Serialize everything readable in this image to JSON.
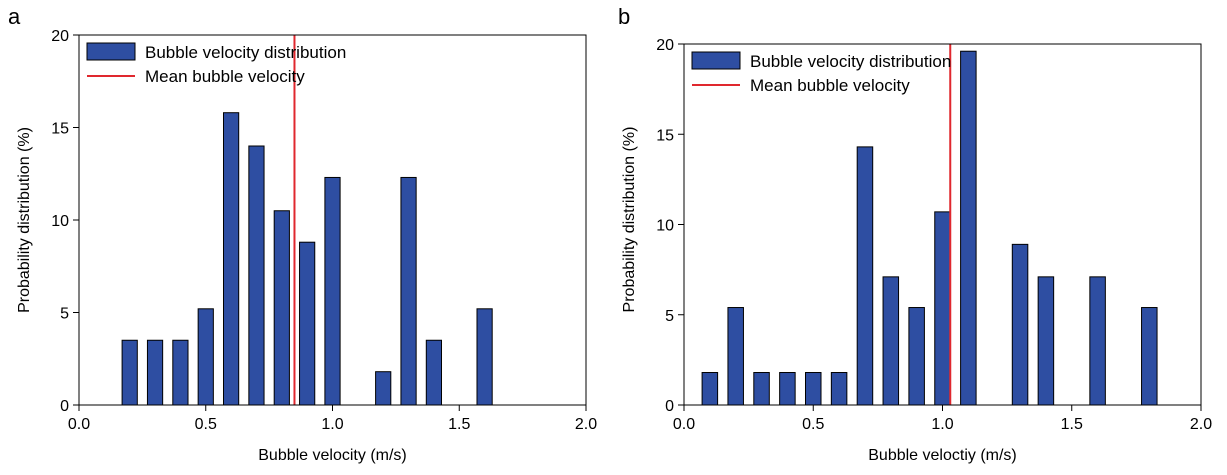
{
  "colors": {
    "bar_fill": "#2e4ea2",
    "bar_stroke": "#000000",
    "mean_line": "#e0282e"
  },
  "chart_data": [
    {
      "type": "bar",
      "panel_label": "a",
      "title": "",
      "xlabel": "Bubble velocity (m/s)",
      "ylabel": "Probability distribution (%)",
      "xlim": [
        0,
        2.0
      ],
      "ylim": [
        0,
        20
      ],
      "xticks": [
        0.0,
        0.5,
        1.0,
        1.5,
        2.0
      ],
      "xtick_labels": [
        "0.0",
        "0.5",
        "1.0",
        "1.5",
        "2.0"
      ],
      "yticks": [
        0,
        5,
        10,
        15,
        20
      ],
      "ytick_labels": [
        "0",
        "5",
        "10",
        "15",
        "20"
      ],
      "x": [
        0.2,
        0.3,
        0.4,
        0.5,
        0.6,
        0.7,
        0.8,
        0.9,
        1.0,
        1.2,
        1.3,
        1.4,
        1.6
      ],
      "values": [
        3.5,
        3.5,
        3.5,
        5.2,
        15.8,
        14.0,
        10.5,
        8.8,
        12.3,
        1.8,
        12.3,
        3.5,
        5.2
      ],
      "bar_width": 0.06,
      "mean_x": 0.85,
      "legend": {
        "placement": "top-left",
        "entries": [
          {
            "label": "Bubble velocity distribution",
            "kind": "bar"
          },
          {
            "label": "Mean bubble velocity",
            "kind": "line"
          }
        ]
      }
    },
    {
      "type": "bar",
      "panel_label": "b",
      "title": "",
      "xlabel": "Bubble veloctiy (m/s)",
      "ylabel": "Probability distribution (%)",
      "xlim": [
        0,
        2.0
      ],
      "ylim": [
        0,
        20
      ],
      "xticks": [
        0.0,
        0.5,
        1.0,
        1.5,
        2.0
      ],
      "xtick_labels": [
        "0.0",
        "0.5",
        "1.0",
        "1.5",
        "2.0"
      ],
      "yticks": [
        0,
        5,
        10,
        15,
        20
      ],
      "ytick_labels": [
        "0",
        "5",
        "10",
        "15",
        "20"
      ],
      "x": [
        0.1,
        0.2,
        0.3,
        0.4,
        0.5,
        0.6,
        0.7,
        0.8,
        0.9,
        1.0,
        1.1,
        1.3,
        1.4,
        1.6,
        1.8
      ],
      "values": [
        1.8,
        5.4,
        1.8,
        1.8,
        1.8,
        1.8,
        14.3,
        7.1,
        5.4,
        10.7,
        19.6,
        8.9,
        7.1,
        7.1,
        5.4
      ],
      "bar_width": 0.06,
      "mean_x": 1.03,
      "legend": {
        "placement": "top-left",
        "entries": [
          {
            "label": "Bubble velocity distribution",
            "kind": "bar"
          },
          {
            "label": "Mean bubble velocity",
            "kind": "line"
          }
        ]
      }
    }
  ]
}
